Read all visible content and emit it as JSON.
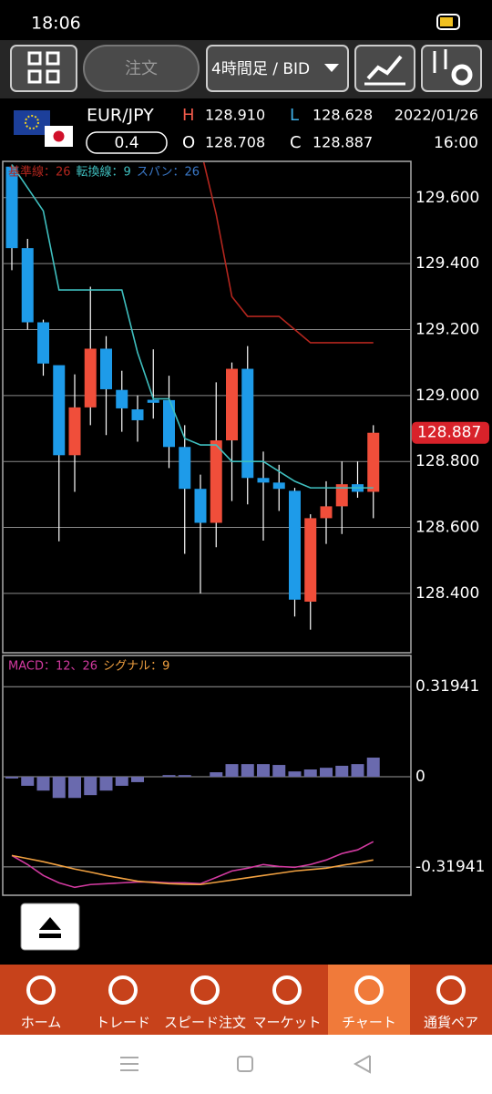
{
  "status_bar": {
    "time": "18:06"
  },
  "toolbar": {
    "order_button": "注文",
    "timeframe": "4時間足 / BID"
  },
  "quote": {
    "pair": "EUR/JPY",
    "spread": "0.4",
    "high": {
      "label": "H",
      "value": "128.910"
    },
    "open": {
      "label": "O",
      "value": "128.708"
    },
    "low": {
      "label": "L",
      "value": "128.628"
    },
    "close": {
      "label": "C",
      "value": "128.887"
    },
    "date": "2022/01/26",
    "time": "16:00"
  },
  "chart_data": [
    {
      "type": "candlestick",
      "open": [
        129.694,
        129.447,
        129.222,
        129.092,
        128.819,
        128.964,
        129.142,
        129.017,
        128.958,
        128.987,
        128.986,
        128.844,
        128.717,
        128.614,
        128.864,
        129.081,
        128.75,
        128.736,
        128.711,
        128.375,
        128.628,
        128.664,
        128.731,
        128.708
      ],
      "high": [
        129.7,
        129.475,
        129.23,
        129.09,
        129.064,
        129.33,
        129.18,
        129.075,
        129.0,
        129.14,
        129.06,
        128.91,
        128.76,
        129.04,
        129.1,
        129.15,
        128.83,
        128.79,
        128.72,
        128.64,
        128.74,
        128.8,
        128.8,
        128.91
      ],
      "low": [
        129.38,
        129.2,
        129.06,
        128.558,
        128.708,
        128.91,
        128.88,
        128.89,
        128.86,
        128.93,
        128.78,
        128.52,
        128.4,
        128.54,
        128.68,
        128.67,
        128.56,
        128.65,
        128.33,
        128.29,
        128.55,
        128.58,
        128.69,
        128.628
      ],
      "close": [
        129.447,
        129.222,
        129.097,
        128.819,
        128.964,
        129.142,
        129.019,
        128.961,
        128.925,
        128.978,
        128.844,
        128.717,
        128.614,
        128.864,
        129.081,
        128.75,
        128.736,
        128.717,
        128.381,
        128.628,
        128.664,
        128.731,
        128.708,
        128.887
      ],
      "up_color": "#f04e3a",
      "down_color": "#1e9be9",
      "series": [
        {
          "name": "基準線：26",
          "color": "#b3261e",
          "values": [
            null,
            null,
            null,
            null,
            null,
            null,
            null,
            null,
            null,
            null,
            null,
            null,
            129.75,
            129.55,
            129.3,
            129.24,
            129.24,
            129.24,
            129.2,
            129.16,
            129.16,
            129.16,
            129.16,
            129.16
          ]
        },
        {
          "name": "転換線：9",
          "color": "#3fbfbf",
          "values": [
            129.7,
            129.63,
            129.56,
            129.32,
            129.32,
            129.32,
            129.32,
            129.32,
            129.13,
            128.99,
            128.99,
            128.87,
            128.85,
            128.85,
            128.8,
            128.8,
            128.8,
            128.77,
            128.74,
            128.72,
            128.72,
            128.72,
            128.72,
            128.72
          ]
        },
        {
          "name": "スパン：26",
          "color": "#3a78c8",
          "values": [
            null,
            null,
            null,
            null,
            null,
            null,
            null,
            null,
            null,
            null,
            null,
            null,
            null,
            null,
            null,
            null,
            null,
            null,
            null,
            null,
            null,
            null,
            null,
            null
          ]
        }
      ],
      "last_price": 128.887,
      "ylim": [
        128.22,
        129.71
      ],
      "yticks": [
        {
          "value": 128.4,
          "label": "128.400"
        },
        {
          "value": 128.6,
          "label": "128.600"
        },
        {
          "value": 128.8,
          "label": "128.800"
        },
        {
          "value": 129.0,
          "label": "129.000"
        },
        {
          "value": 129.2,
          "label": "129.200"
        },
        {
          "value": 129.4,
          "label": "129.400"
        },
        {
          "value": 129.6,
          "label": "129.600"
        }
      ],
      "grid": true
    },
    {
      "type": "macd",
      "values": [
        -0.006,
        -0.032,
        -0.049,
        -0.075,
        -0.075,
        -0.065,
        -0.049,
        -0.032,
        -0.019,
        0,
        0.006,
        0.006,
        0,
        0.016,
        0.045,
        0.045,
        0.045,
        0.042,
        0.019,
        0.026,
        0.032,
        0.039,
        0.045,
        0.068
      ],
      "color": "#6a6aae",
      "series": [
        {
          "name": "MACD：12、26",
          "color": "#d23aa0",
          "values": [
            -0.279,
            -0.311,
            -0.35,
            -0.376,
            -0.392,
            -0.382,
            -0.379,
            -0.376,
            -0.373,
            -0.373,
            -0.376,
            -0.376,
            -0.379,
            -0.357,
            -0.334,
            -0.324,
            -0.311,
            -0.318,
            -0.321,
            -0.311,
            -0.295,
            -0.272,
            -0.259,
            -0.23
          ]
        },
        {
          "name": "シグナル：9",
          "color": "#f0a040",
          "values": [
            -0.279,
            -0.29,
            -0.301,
            -0.314,
            -0.327,
            -0.338,
            -0.35,
            -0.36,
            -0.37,
            -0.375,
            -0.379,
            -0.381,
            -0.382,
            -0.374,
            -0.366,
            -0.358,
            -0.35,
            -0.342,
            -0.334,
            -0.329,
            -0.324,
            -0.314,
            -0.305,
            -0.295
          ]
        }
      ],
      "ylim": [
        -0.42,
        0.43
      ],
      "yticks": [
        0.31941,
        0,
        -0.31941
      ],
      "grid": true
    }
  ],
  "nav": {
    "items": [
      "ホーム",
      "トレード",
      "スピード注文",
      "マーケット",
      "チャート",
      "通貨ペア"
    ],
    "active": 4
  }
}
